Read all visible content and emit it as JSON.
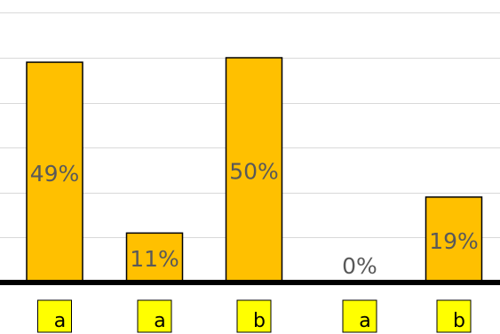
{
  "chart_data": {
    "type": "bar",
    "categories": [
      "a",
      "a",
      "b",
      "a",
      "b"
    ],
    "values": [
      49,
      11,
      50,
      0,
      19
    ],
    "value_labels": [
      "49%",
      "11%",
      "50%",
      "0%",
      "19%"
    ],
    "ylim": [
      0,
      60
    ],
    "grid": true,
    "title": "",
    "xlabel": "",
    "ylabel": "",
    "colors": {
      "bar": "#FFC000",
      "bar_outline": "#000000",
      "category_box": "#FFFF00",
      "gridline": "#D9D9D9",
      "baseline": "#000000",
      "value_label": "#595959",
      "category_text": "#000000"
    }
  }
}
